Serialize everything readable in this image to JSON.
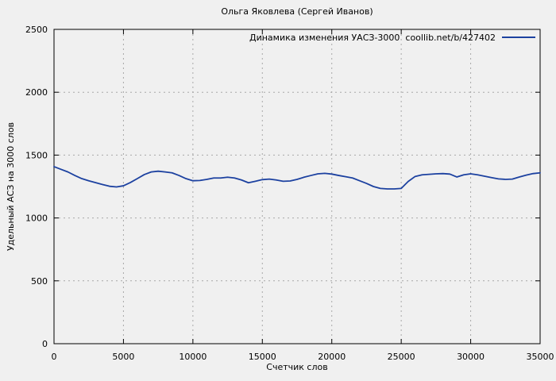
{
  "page": {
    "background": "#f0f0f0",
    "text_color": "#000000"
  },
  "chart_data": {
    "type": "line",
    "title": "Ольга Яковлева (Сергей Иванов)",
    "legend": {
      "label": "Динамика изменения УАСЗ-3000  coollib.net/b/427402",
      "position": "top-right-inside"
    },
    "xlabel": "Счетчик слов",
    "ylabel": "Удельный АСЗ на 3000 слов",
    "xlim": [
      0,
      35000
    ],
    "ylim": [
      0,
      2500
    ],
    "xticks": [
      0,
      5000,
      10000,
      15000,
      20000,
      25000,
      30000,
      35000
    ],
    "yticks": [
      0,
      500,
      1000,
      1500,
      2000,
      2500
    ],
    "grid": true,
    "line_color": "#1c41a0",
    "grid_color": "#a8a8a8",
    "axis_color": "#000000",
    "x": [
      0,
      500,
      1000,
      1500,
      2000,
      2500,
      3000,
      3500,
      4000,
      4500,
      5000,
      5500,
      6000,
      6500,
      7000,
      7500,
      8000,
      8500,
      9000,
      9500,
      10000,
      10500,
      11000,
      11500,
      12000,
      12500,
      13000,
      13500,
      14000,
      14500,
      15000,
      15500,
      16000,
      16500,
      17000,
      17500,
      18000,
      18500,
      19000,
      19500,
      20000,
      20500,
      21000,
      21500,
      22000,
      22500,
      23000,
      23500,
      24000,
      24500,
      25000,
      25500,
      26000,
      26500,
      27000,
      27500,
      28000,
      28500,
      29000,
      29500,
      30000,
      30500,
      31000,
      31500,
      32000,
      32500,
      33000,
      33500,
      34000,
      34500,
      35000
    ],
    "y": [
      1408,
      1387,
      1366,
      1338,
      1313,
      1296,
      1281,
      1266,
      1252,
      1247,
      1256,
      1282,
      1313,
      1345,
      1366,
      1372,
      1366,
      1359,
      1338,
      1313,
      1296,
      1298,
      1307,
      1318,
      1318,
      1324,
      1318,
      1302,
      1280,
      1292,
      1305,
      1309,
      1302,
      1292,
      1294,
      1307,
      1324,
      1338,
      1351,
      1355,
      1349,
      1338,
      1328,
      1318,
      1296,
      1275,
      1250,
      1235,
      1231,
      1231,
      1235,
      1290,
      1330,
      1343,
      1347,
      1351,
      1353,
      1349,
      1326,
      1343,
      1351,
      1343,
      1332,
      1321,
      1311,
      1307,
      1309,
      1326,
      1341,
      1353,
      1359
    ]
  }
}
